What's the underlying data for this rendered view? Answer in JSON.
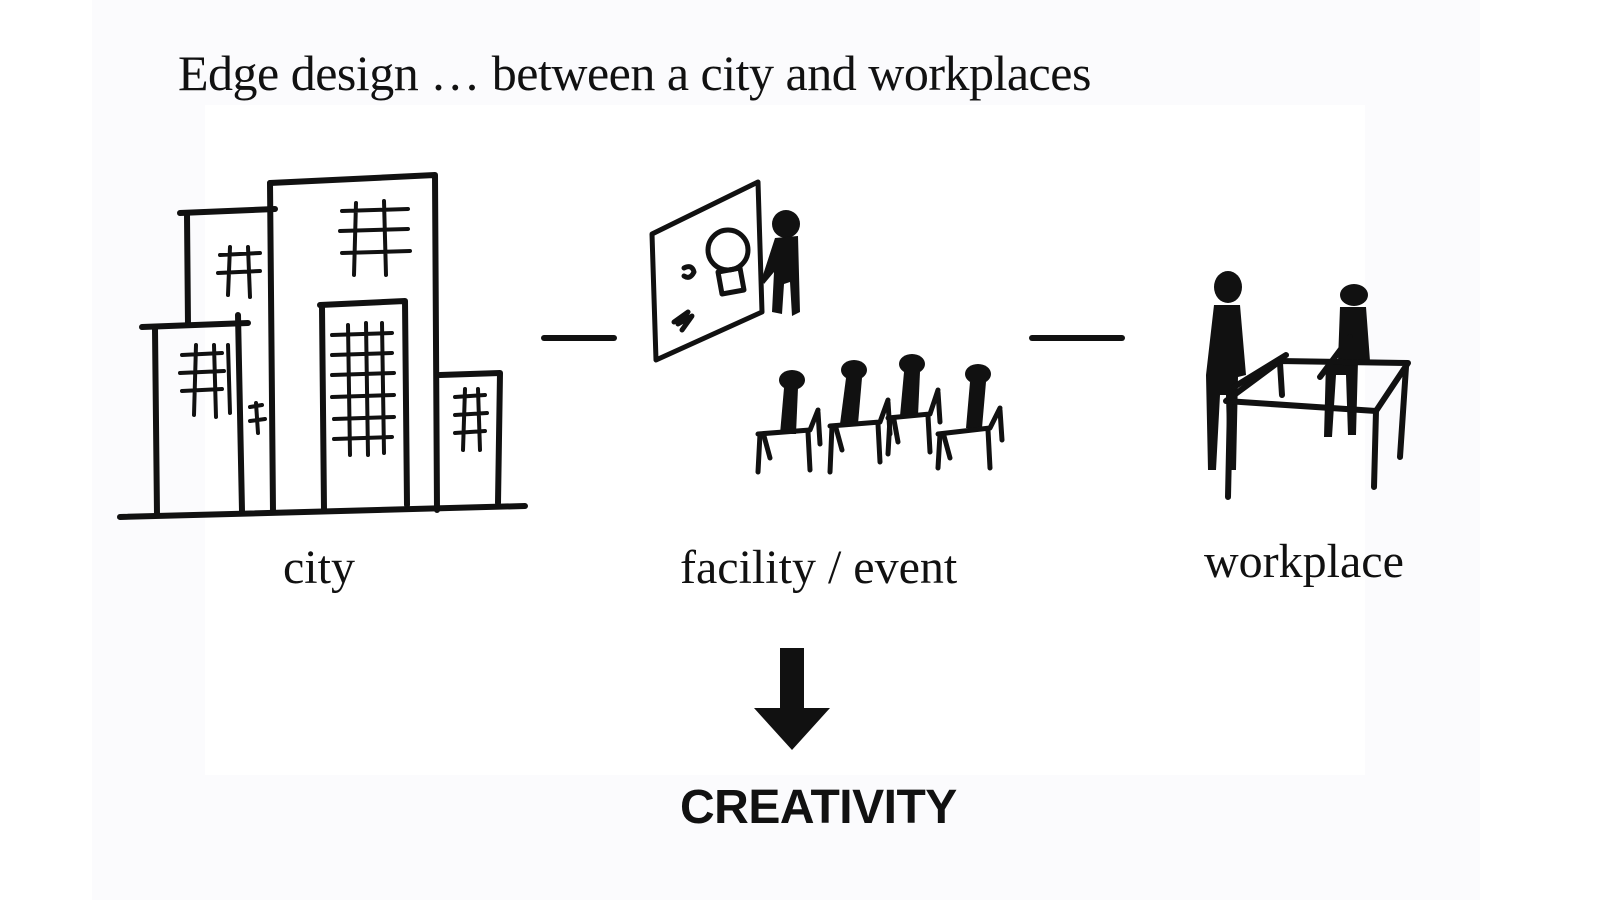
{
  "title": "Edge design … between a city and workplaces",
  "nodes": [
    {
      "label": "city",
      "icon": "buildings-icon"
    },
    {
      "label": "facility / event",
      "icon": "presentation-audience-icon"
    },
    {
      "label": "workplace",
      "icon": "meeting-table-icon"
    }
  ],
  "connector_icon": "dash-connector-icon",
  "arrow_icon": "down-arrow-icon",
  "conclusion": "CREATIVITY",
  "colors": {
    "ink": "#111111",
    "background": "#ffffff"
  }
}
